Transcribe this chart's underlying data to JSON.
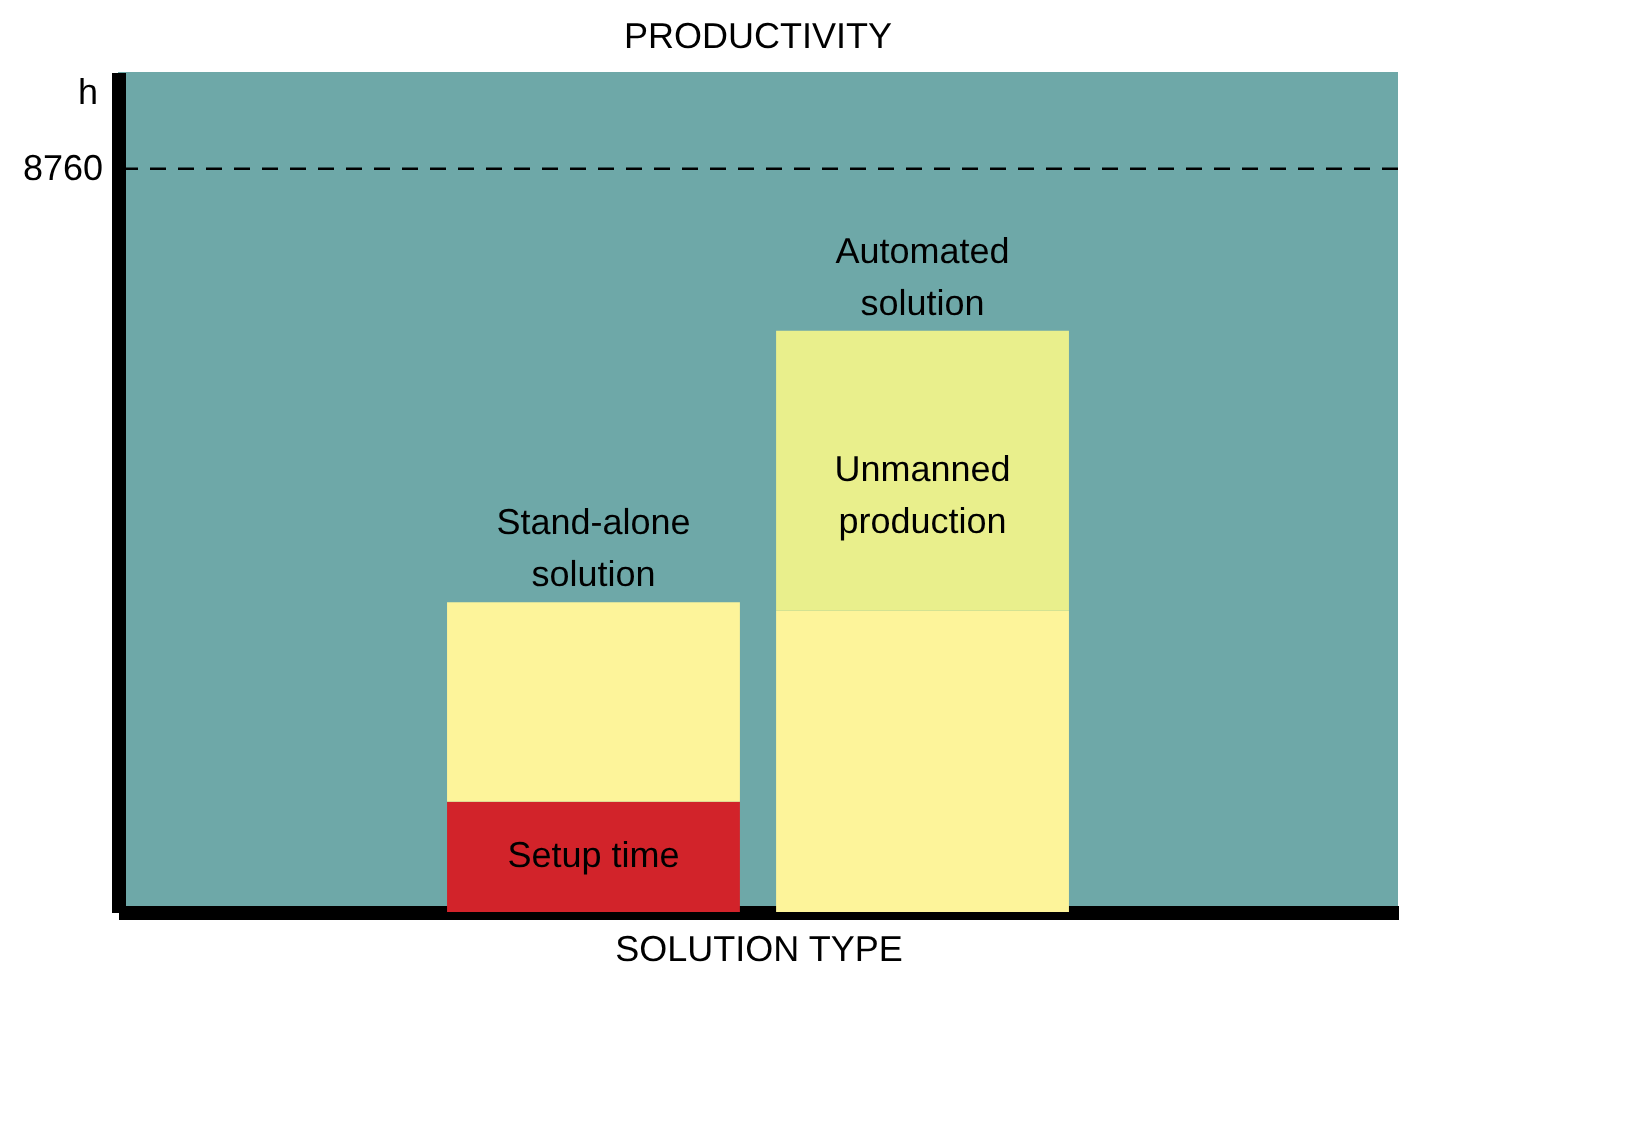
{
  "chart_data": {
    "type": "bar",
    "title": "PRODUCTIVITY",
    "xlabel": "SOLUTION TYPE",
    "annotations": [
      "h"
    ],
    "stacked": true,
    "legend": false,
    "grid": false,
    "ylim": [
      0,
      9900
    ],
    "yticks": [
      8760
    ],
    "categories": [
      "Stand-alone solution",
      "Automated solution"
    ],
    "series": [
      {
        "name": "Setup time",
        "color": "#d2232a",
        "values": [
          1300,
          null
        ]
      },
      {
        "color": "#fdf49a",
        "values": [
          2350,
          3550
        ]
      },
      {
        "name": "Unmanned production",
        "color": "#e9ef8c",
        "values": [
          null,
          3300
        ]
      }
    ],
    "ref_lines": [
      {
        "axis": "y",
        "value": 8760,
        "line_style": "dashed",
        "color": "#000000"
      }
    ]
  }
}
